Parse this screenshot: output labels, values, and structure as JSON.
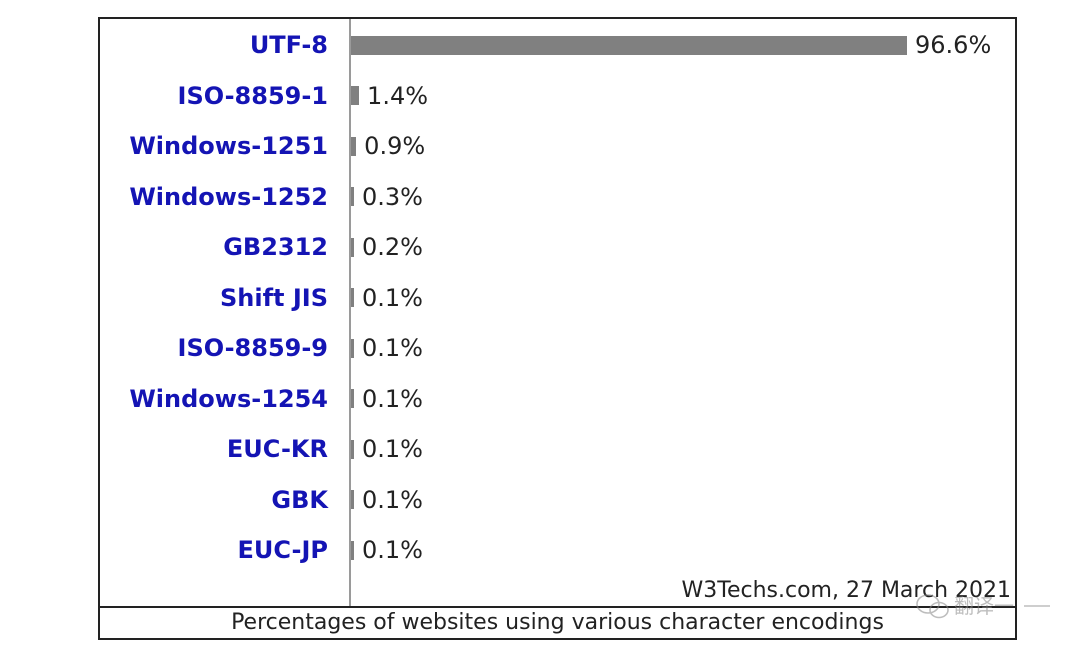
{
  "chart_data": {
    "type": "bar",
    "orientation": "horizontal",
    "categories": [
      "UTF-8",
      "ISO-8859-1",
      "Windows-1251",
      "Windows-1252",
      "GB2312",
      "Shift JIS",
      "ISO-8859-9",
      "Windows-1254",
      "EUC-KR",
      "GBK",
      "EUC-JP"
    ],
    "values": [
      96.6,
      1.4,
      0.9,
      0.3,
      0.2,
      0.1,
      0.1,
      0.1,
      0.1,
      0.1,
      0.1
    ],
    "value_labels": [
      "96.6%",
      "1.4%",
      "0.9%",
      "0.3%",
      "0.2%",
      "0.1%",
      "0.1%",
      "0.1%",
      "0.1%",
      "0.1%",
      "0.1%"
    ],
    "xlim": [
      0,
      100
    ],
    "title": "",
    "xlabel": "",
    "ylabel": "",
    "grid": false,
    "source": "W3Techs.com, 27 March 2021",
    "caption": "Percentages of websites using various character encodings",
    "colors": {
      "bar": "#808080",
      "label": "#1414b4",
      "text": "#222222",
      "axis": "#9a9a9a"
    }
  },
  "watermark": {
    "icon": "wechat-icon",
    "text": "翻译一"
  }
}
